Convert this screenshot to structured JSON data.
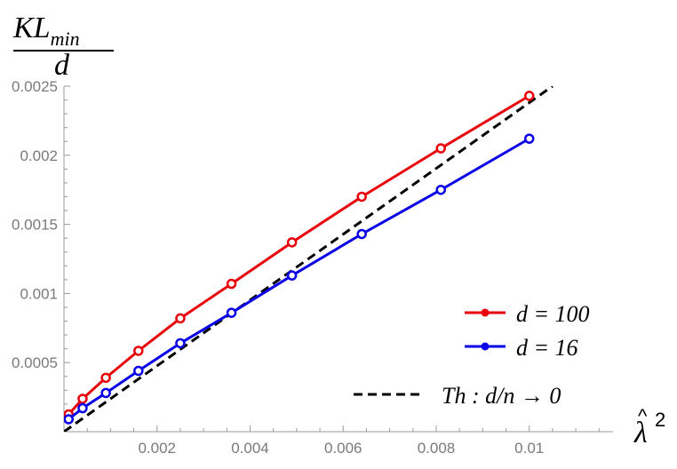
{
  "chart_data": {
    "type": "line",
    "ylabel_top": "KL",
    "ylabel_sub": "min",
    "ylabel_den": "d",
    "xlabel_base": "λ",
    "xlabel_hat": "^",
    "xlabel_sup": "2",
    "xlim": [
      0,
      0.0118
    ],
    "ylim": [
      0,
      0.0025
    ],
    "x_ticks": [
      0.002,
      0.004,
      0.006,
      0.008,
      0.01
    ],
    "x_tick_labels": [
      "0.002",
      "0.004",
      "0.006",
      "0.008",
      "0.01"
    ],
    "y_ticks": [
      0.0005,
      0.001,
      0.0015,
      0.002,
      0.0025
    ],
    "y_tick_labels": [
      "0.0005",
      "0.001",
      "0.0015",
      "0.002",
      "0.0025"
    ],
    "series": [
      {
        "name": "d = 100",
        "color": "#e8000b",
        "x": [
          0.0001,
          0.0004,
          0.0009,
          0.0016,
          0.0025,
          0.0036,
          0.0049,
          0.0064,
          0.0081,
          0.01
        ],
        "y": [
          0.000125,
          0.000238,
          0.00039,
          0.000585,
          0.00082,
          0.00107,
          0.00137,
          0.0017,
          0.00205,
          0.00243
        ]
      },
      {
        "name": "d = 16",
        "color": "#0a00e6",
        "x": [
          0.0001,
          0.0004,
          0.0009,
          0.0016,
          0.0025,
          0.0036,
          0.0049,
          0.0064,
          0.0081,
          0.01
        ],
        "y": [
          9e-05,
          0.00017,
          0.00028,
          0.00044,
          0.00064,
          0.00086,
          0.00113,
          0.00143,
          0.00175,
          0.00212
        ]
      },
      {
        "name": "Th : d/n → 0",
        "color": "#000000",
        "dashed": true,
        "x": [
          0,
          0.0105
        ],
        "y": [
          0,
          0.0025
        ]
      }
    ],
    "legend": {
      "placement": "bottom-right",
      "entries": [
        {
          "label": "d = 100"
        },
        {
          "label": "d = 16"
        },
        {
          "label": "Th : d/n → 0"
        }
      ]
    },
    "grid": false
  }
}
